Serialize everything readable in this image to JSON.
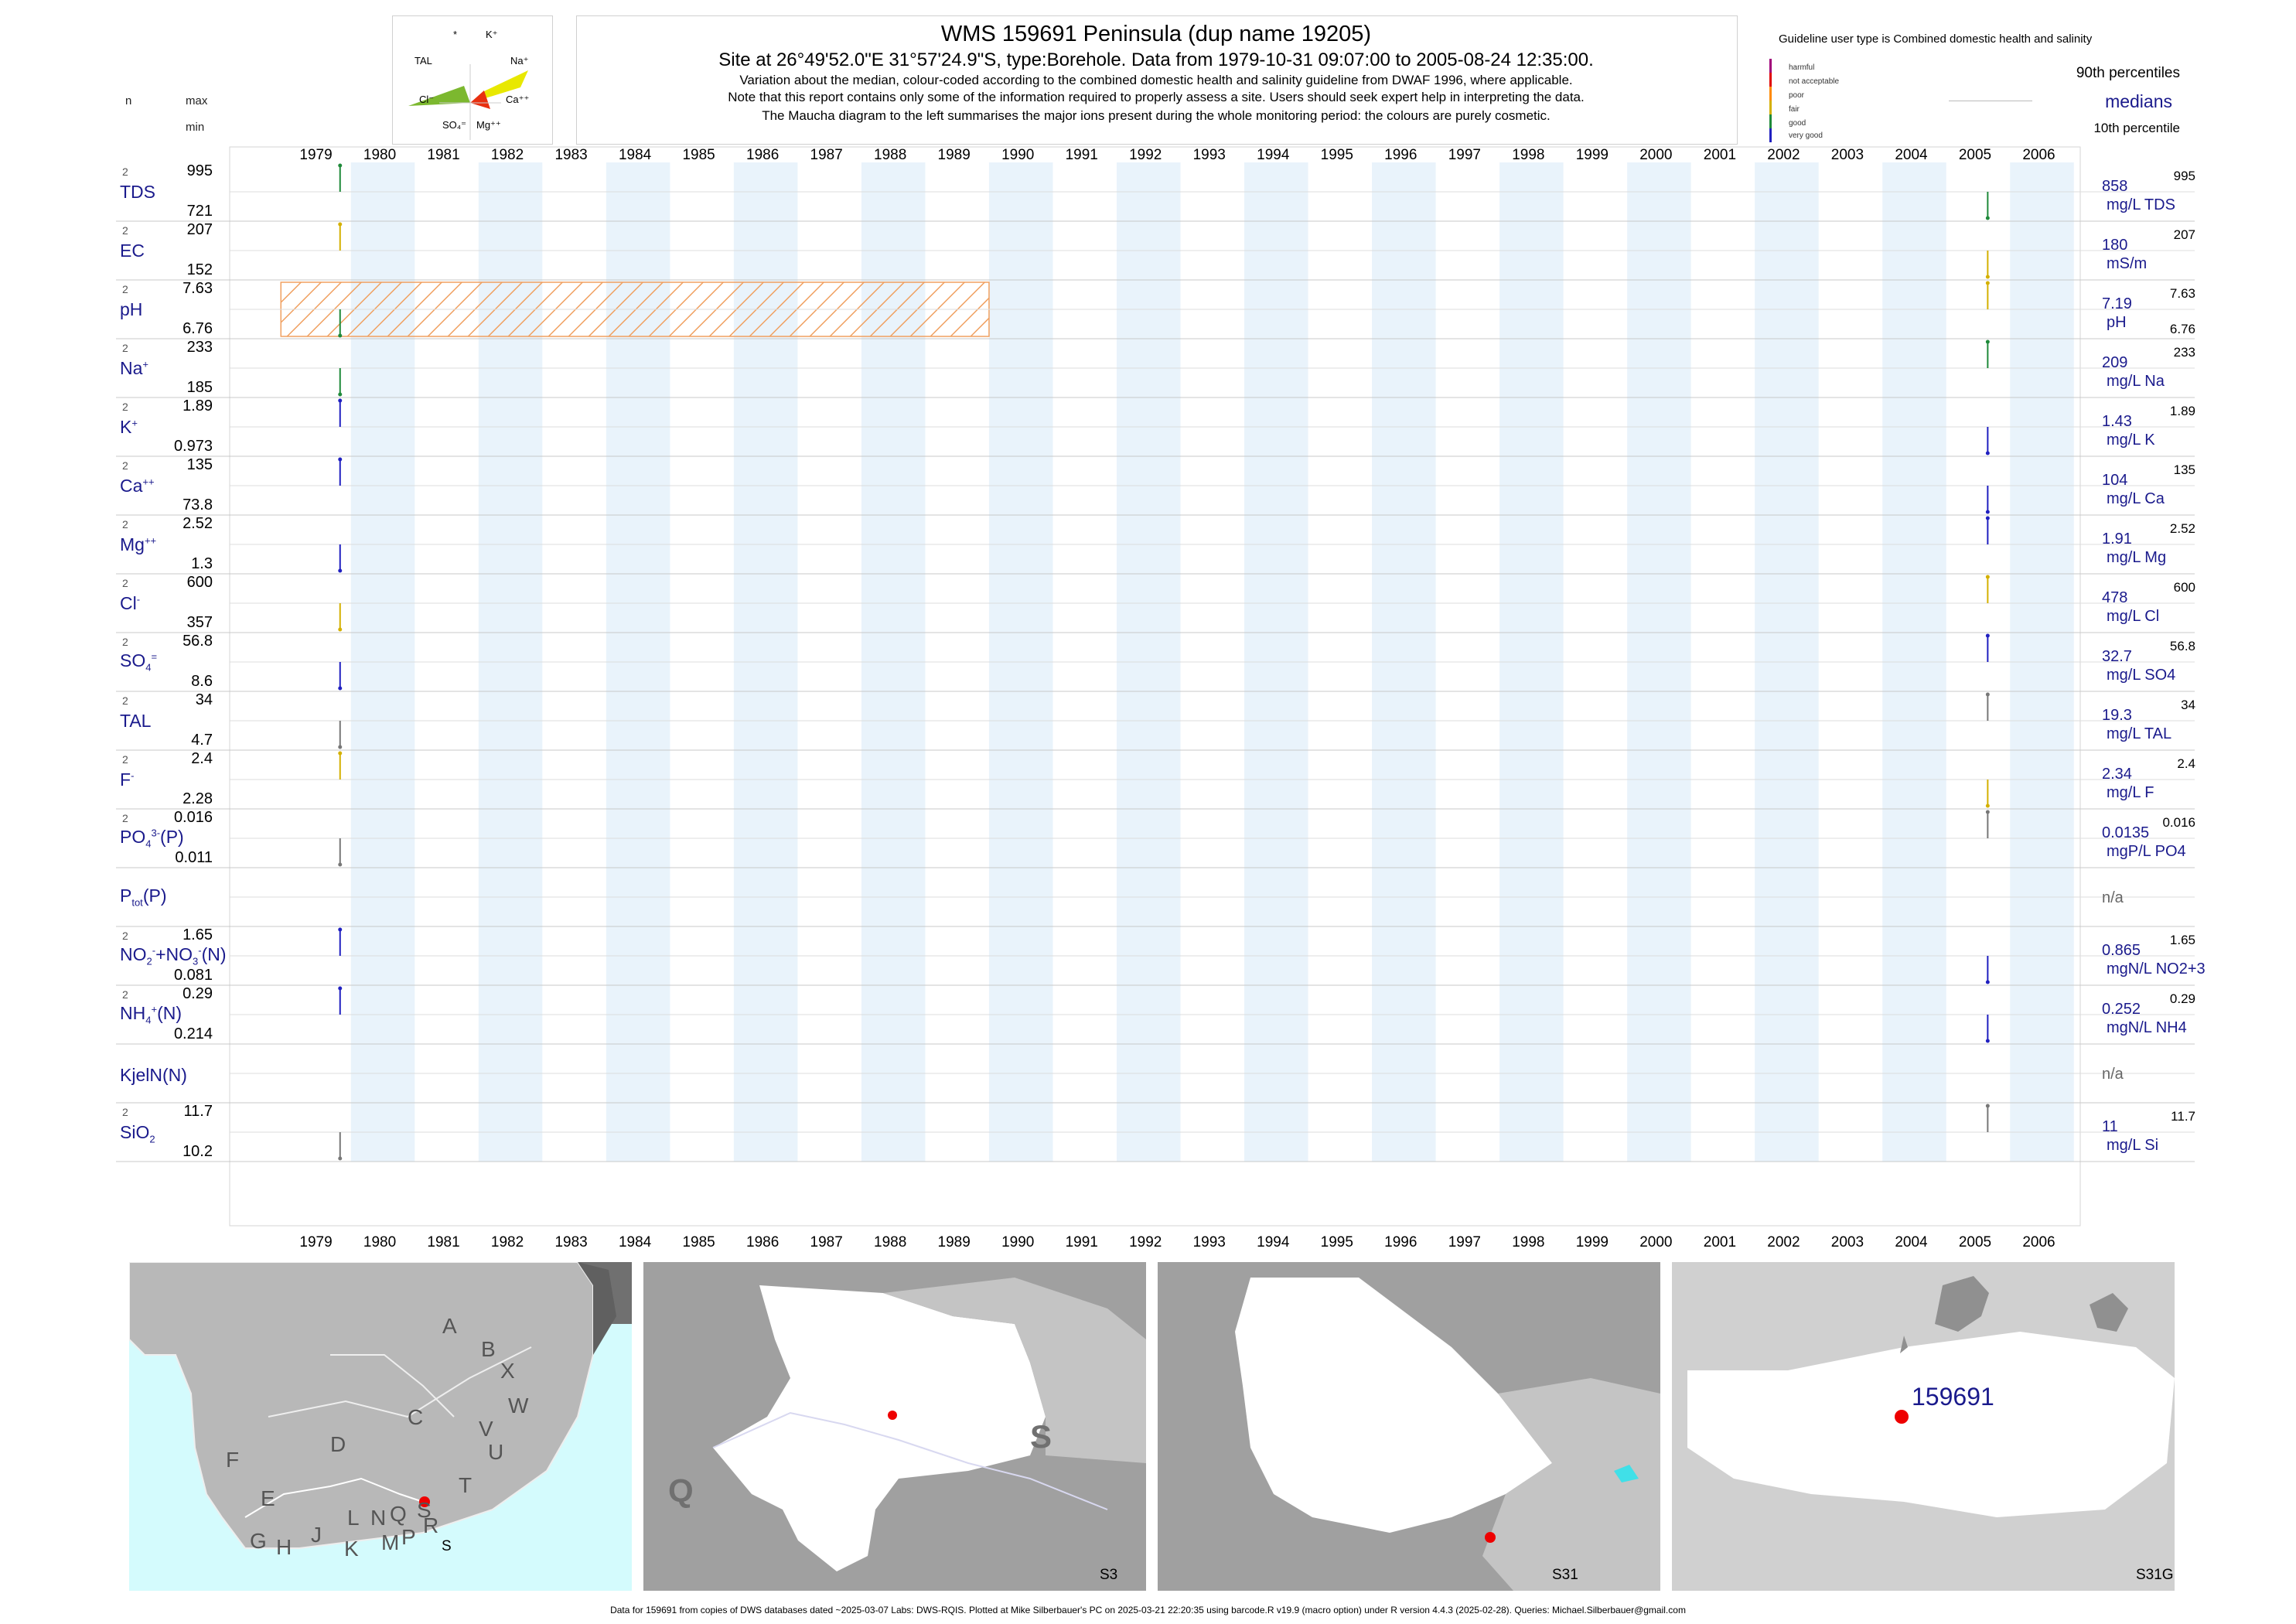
{
  "header": {
    "title": "WMS 159691  Peninsula (dup name 19205)",
    "subtitle": "Site at 26°49'52.0\"E 31°57'24.9\"S, type:Borehole.  Data from 1979-10-31 09:07:00 to 2005-08-24 12:35:00.",
    "note1": "Variation about the median,  colour-coded according to the combined domestic health and salinity guideline from DWAF 1996, where applicable.",
    "note2": "Note that this report contains only some of the information required to properly assess a site. Users should seek expert help in interpreting the data.",
    "note3": "The Maucha diagram to the left summarises the major ions present during the whole monitoring period: the colours are purely cosmetic."
  },
  "col_headers": {
    "n": "n",
    "max": "max",
    "min": "min"
  },
  "maucha": {
    "labels": [
      "*",
      "K⁺",
      "TAL",
      "Na⁺",
      "Cl⁻",
      "Ca⁺⁺",
      "SO₄⁼",
      "Mg⁺⁺"
    ]
  },
  "guideline": {
    "title": "Guideline user type is Combined domestic health and salinity",
    "levels": [
      "harmful",
      "not acceptable",
      "poor",
      "fair",
      "good",
      "very good"
    ],
    "level_colors": [
      "#a0007a",
      "#e00000",
      "#ff8a00",
      "#d4b000",
      "#1f8a3a",
      "#2020c0"
    ],
    "p90": "90th percentiles",
    "medians": "medians",
    "p10": "10th percentile"
  },
  "years": [
    "1979",
    "1980",
    "1981",
    "1982",
    "1983",
    "1984",
    "1985",
    "1986",
    "1987",
    "1988",
    "1989",
    "1990",
    "1991",
    "1992",
    "1993",
    "1994",
    "1995",
    "1996",
    "1997",
    "1998",
    "1999",
    "2000",
    "2001",
    "2002",
    "2003",
    "2004",
    "2005",
    "2006"
  ],
  "params": [
    {
      "name": "TDS",
      "n": "2",
      "max": "995",
      "min": "721",
      "median": "858",
      "unit": "mg/L TDS",
      "rmax": "995",
      "rmin": ""
    },
    {
      "name": "EC",
      "n": "2",
      "max": "207",
      "min": "152",
      "median": "180",
      "unit": "mS/m",
      "rmax": "207",
      "rmin": ""
    },
    {
      "name": "pH",
      "n": "2",
      "max": "7.63",
      "min": "6.76",
      "median": "7.19",
      "unit": "pH",
      "rmax": "7.63",
      "rmin": "6.76"
    },
    {
      "name": "Na",
      "n": "2",
      "max": "233",
      "min": "185",
      "median": "209",
      "unit": "mg/L Na",
      "rmax": "233",
      "rmin": ""
    },
    {
      "name": "K",
      "n": "2",
      "max": "1.89",
      "min": "0.973",
      "median": "1.43",
      "unit": "mg/L K",
      "rmax": "1.89",
      "rmin": ""
    },
    {
      "name": "Ca",
      "n": "2",
      "max": "135",
      "min": "73.8",
      "median": "104",
      "unit": "mg/L Ca",
      "rmax": "135",
      "rmin": ""
    },
    {
      "name": "Mg",
      "n": "2",
      "max": "2.52",
      "min": "1.3",
      "median": "1.91",
      "unit": "mg/L Mg",
      "rmax": "2.52",
      "rmin": ""
    },
    {
      "name": "Cl",
      "n": "2",
      "max": "600",
      "min": "357",
      "median": "478",
      "unit": "mg/L Cl",
      "rmax": "600",
      "rmin": ""
    },
    {
      "name": "SO4",
      "n": "2",
      "max": "56.8",
      "min": "8.6",
      "median": "32.7",
      "unit": "mg/L SO4",
      "rmax": "56.8",
      "rmin": ""
    },
    {
      "name": "TAL",
      "n": "2",
      "max": "34",
      "min": "4.7",
      "median": "19.3",
      "unit": "mg/L TAL",
      "rmax": "34",
      "rmin": ""
    },
    {
      "name": "F",
      "n": "2",
      "max": "2.4",
      "min": "2.28",
      "median": "2.34",
      "unit": "mg/L F",
      "rmax": "2.4",
      "rmin": ""
    },
    {
      "name": "PO4",
      "n": "2",
      "max": "0.016",
      "min": "0.011",
      "median": "0.0135",
      "unit": "mgP/L PO4",
      "rmax": "0.016",
      "rmin": ""
    },
    {
      "name": "Ptot",
      "n": "",
      "max": "",
      "min": "",
      "median": "n/a",
      "unit": "",
      "rmax": "",
      "rmin": ""
    },
    {
      "name": "NO2NO3",
      "n": "2",
      "max": "1.65",
      "min": "0.081",
      "median": "0.865",
      "unit": "mgN/L NO2+3",
      "rmax": "1.65",
      "rmin": ""
    },
    {
      "name": "NH4",
      "n": "2",
      "max": "0.29",
      "min": "0.214",
      "median": "0.252",
      "unit": "mgN/L NH4",
      "rmax": "0.29",
      "rmin": ""
    },
    {
      "name": "KjelN",
      "n": "",
      "max": "",
      "min": "",
      "median": "n/a",
      "unit": "",
      "rmax": "",
      "rmin": ""
    },
    {
      "name": "SiO2",
      "n": "2",
      "max": "11.7",
      "min": "10.2",
      "median": "11",
      "unit": "mg/L Si",
      "rmax": "11.7",
      "rmin": ""
    }
  ],
  "chart_data": {
    "type": "scatter",
    "x_axis": "year",
    "xlim": [
      1978.1,
      2007.1
    ],
    "guideline_band": {
      "parameter": "pH",
      "from": 1979.0,
      "to": 1990.0
    },
    "samples": [
      {
        "name": "TDS",
        "points": [
          {
            "x": 1979.83,
            "y": 995,
            "c": "#1f8a3a"
          },
          {
            "x": 2005.65,
            "y": 721,
            "c": "#1f8a3a"
          }
        ],
        "ylim": [
          721,
          995
        ]
      },
      {
        "name": "EC",
        "points": [
          {
            "x": 1979.83,
            "y": 207,
            "c": "#d4b000"
          },
          {
            "x": 2005.65,
            "y": 152,
            "c": "#d4b000"
          }
        ],
        "ylim": [
          152,
          207
        ]
      },
      {
        "name": "pH",
        "points": [
          {
            "x": 1979.83,
            "y": 6.76,
            "c": "#1f8a3a"
          },
          {
            "x": 2005.65,
            "y": 7.63,
            "c": "#d4b000"
          }
        ],
        "ylim": [
          6.76,
          7.63
        ]
      },
      {
        "name": "Na",
        "points": [
          {
            "x": 1979.83,
            "y": 185,
            "c": "#1f8a3a"
          },
          {
            "x": 2005.65,
            "y": 233,
            "c": "#1f8a3a"
          }
        ],
        "ylim": [
          185,
          233
        ]
      },
      {
        "name": "K",
        "points": [
          {
            "x": 1979.83,
            "y": 1.89,
            "c": "#2020c0"
          },
          {
            "x": 2005.65,
            "y": 0.973,
            "c": "#2020c0"
          }
        ],
        "ylim": [
          0.973,
          1.89
        ]
      },
      {
        "name": "Ca",
        "points": [
          {
            "x": 1979.83,
            "y": 135,
            "c": "#2020c0"
          },
          {
            "x": 2005.65,
            "y": 73.8,
            "c": "#2020c0"
          }
        ],
        "ylim": [
          73.8,
          135
        ]
      },
      {
        "name": "Mg",
        "points": [
          {
            "x": 1979.83,
            "y": 1.3,
            "c": "#2020c0"
          },
          {
            "x": 2005.65,
            "y": 2.52,
            "c": "#2020c0"
          }
        ],
        "ylim": [
          1.3,
          2.52
        ]
      },
      {
        "name": "Cl",
        "points": [
          {
            "x": 1979.83,
            "y": 357,
            "c": "#d4b000"
          },
          {
            "x": 2005.65,
            "y": 600,
            "c": "#d4b000"
          }
        ],
        "ylim": [
          357,
          600
        ]
      },
      {
        "name": "SO4",
        "points": [
          {
            "x": 1979.83,
            "y": 8.6,
            "c": "#2020c0"
          },
          {
            "x": 2005.65,
            "y": 56.8,
            "c": "#2020c0"
          }
        ],
        "ylim": [
          8.6,
          56.8
        ]
      },
      {
        "name": "TAL",
        "points": [
          {
            "x": 1979.83,
            "y": 4.7,
            "c": "#777777"
          },
          {
            "x": 2005.65,
            "y": 34,
            "c": "#777777"
          }
        ],
        "ylim": [
          4.7,
          34
        ]
      },
      {
        "name": "F",
        "points": [
          {
            "x": 1979.83,
            "y": 2.4,
            "c": "#d4b000"
          },
          {
            "x": 2005.65,
            "y": 2.28,
            "c": "#d4b000"
          }
        ],
        "ylim": [
          2.28,
          2.4
        ]
      },
      {
        "name": "PO4",
        "points": [
          {
            "x": 1979.83,
            "y": 0.011,
            "c": "#777777"
          },
          {
            "x": 2005.65,
            "y": 0.016,
            "c": "#777777"
          }
        ],
        "ylim": [
          0.011,
          0.016
        ]
      },
      {
        "name": "Ptot",
        "points": [],
        "ylim": [
          0,
          1
        ]
      },
      {
        "name": "NO2NO3",
        "points": [
          {
            "x": 1979.83,
            "y": 1.65,
            "c": "#2020c0"
          },
          {
            "x": 2005.65,
            "y": 0.081,
            "c": "#2020c0"
          }
        ],
        "ylim": [
          0.081,
          1.65
        ]
      },
      {
        "name": "NH4",
        "points": [
          {
            "x": 1979.83,
            "y": 0.29,
            "c": "#2020c0"
          },
          {
            "x": 2005.65,
            "y": 0.214,
            "c": "#2020c0"
          }
        ],
        "ylim": [
          0.214,
          0.29
        ]
      },
      {
        "name": "KjelN",
        "points": [],
        "ylim": [
          0,
          1
        ]
      },
      {
        "name": "SiO2",
        "points": [
          {
            "x": 1979.83,
            "y": 10.2,
            "c": "#777777"
          },
          {
            "x": 2005.65,
            "y": 11.7,
            "c": "#777777"
          }
        ],
        "ylim": [
          10.2,
          11.7
        ]
      }
    ]
  },
  "maps": [
    {
      "label": "S",
      "regions": [
        "A",
        "B",
        "X",
        "W",
        "C",
        "V",
        "U",
        "D",
        "T",
        "F",
        "E",
        "L",
        "N",
        "Q",
        "S",
        "G",
        "H",
        "J",
        "K",
        "M",
        "P",
        "R"
      ]
    },
    {
      "label": "S3",
      "regions": [
        "S",
        "Q"
      ]
    },
    {
      "label": "S31",
      "regions": []
    },
    {
      "label": "S31G",
      "regions": [
        "159691"
      ]
    }
  ],
  "footer": "Data for 159691 from copies of DWS databases dated ~2025-03-07 Labs: DWS-RQIS. Plotted at Mike Silberbauer's PC on 2025-03-21 22:20:35 using barcode.R v19.9 (macro option) under R version 4.4.3 (2025-02-28). Queries: Michael.Silberbauer@gmail.com"
}
